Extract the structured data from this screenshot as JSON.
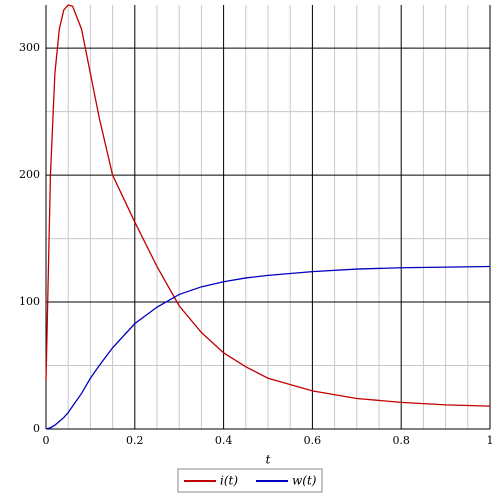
{
  "chart_data": {
    "type": "line",
    "xlabel": "t",
    "x": [
      0,
      0.01,
      0.02,
      0.03,
      0.04,
      0.05,
      0.06,
      0.08,
      0.1,
      0.12,
      0.15,
      0.2,
      0.25,
      0.3,
      0.35,
      0.4,
      0.45,
      0.5,
      0.6,
      0.7,
      0.8,
      0.9,
      1
    ],
    "series": [
      {
        "name": "i(t)",
        "color": "#c00000",
        "values": [
          38,
          200,
          280,
          315,
          330,
          334,
          333,
          315,
          280,
          245,
          200,
          163,
          128,
          97,
          76,
          60,
          49,
          40,
          30,
          24,
          21,
          19,
          18
        ]
      },
      {
        "name": "w(t)",
        "color": "#0000c0",
        "values": [
          0,
          1,
          3,
          6,
          9,
          13,
          18,
          28,
          40,
          50,
          64,
          83,
          96,
          106,
          112,
          116,
          119,
          121,
          124,
          126,
          127,
          127.5,
          128
        ]
      }
    ],
    "xlim": [
      0,
      1
    ],
    "ylim": [
      0,
      334
    ],
    "xticks": [
      0,
      0.2,
      0.4,
      0.6,
      0.8,
      1
    ],
    "yticks": [
      0,
      100,
      200,
      300
    ],
    "xminor": [
      0.05,
      0.1,
      0.15,
      0.25,
      0.3,
      0.35,
      0.45,
      0.5,
      0.55,
      0.65,
      0.7,
      0.75,
      0.85,
      0.9,
      0.95
    ],
    "yminor": [
      50,
      150,
      250
    ],
    "grid": true,
    "legend": "bottom"
  }
}
